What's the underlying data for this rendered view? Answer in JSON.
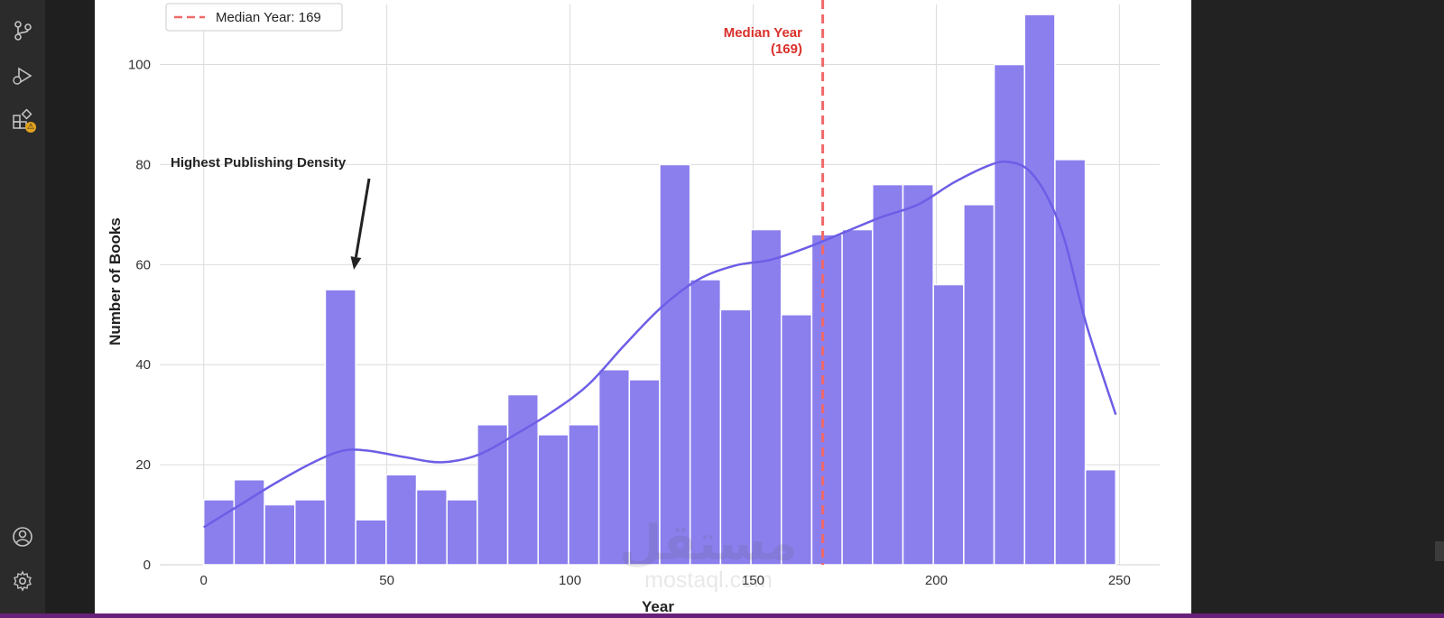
{
  "activity_bar": {
    "icons": [
      "source-control-icon",
      "run-debug-icon",
      "extensions-icon",
      "account-icon",
      "settings-gear-icon"
    ],
    "warning_badge": "⚠"
  },
  "colors": {
    "bar_fill": "#8b7fed",
    "bar_stroke": "#ffffff",
    "kde_line": "#6d5ee6",
    "median_line": "#f06969",
    "median_text": "#d9302b",
    "grid": "#dcdcdc",
    "annotation": "#222222"
  },
  "chart_data": {
    "type": "bar",
    "subtype": "histogram-with-kde",
    "title": "",
    "xlabel": "Year",
    "ylabel": "Number of Books",
    "xlim": [
      -12,
      261
    ],
    "ylim": [
      0,
      112
    ],
    "xticks": [
      0,
      50,
      100,
      150,
      200,
      250
    ],
    "yticks": [
      0,
      20,
      40,
      60,
      80,
      100
    ],
    "grid": true,
    "legend": {
      "position": "top-left",
      "entries": [
        "Median Year: 169"
      ]
    },
    "bins": {
      "start": 0,
      "width": 8.3,
      "counts": [
        13,
        17,
        12,
        13,
        55,
        9,
        18,
        15,
        13,
        28,
        34,
        26,
        28,
        39,
        37,
        80,
        57,
        51,
        67,
        50,
        66,
        67,
        76,
        76,
        56,
        72,
        100,
        110,
        81,
        19
      ]
    },
    "kde": {
      "x": [
        0,
        10,
        20,
        30,
        38,
        45,
        55,
        65,
        75,
        85,
        95,
        105,
        115,
        125,
        135,
        145,
        155,
        165,
        175,
        185,
        195,
        205,
        215,
        220,
        225,
        230,
        235,
        241,
        249
      ],
      "y": [
        7.5,
        12,
        16.5,
        20.5,
        22.8,
        22.8,
        21.5,
        20.5,
        22,
        26,
        30.5,
        36,
        44,
        51.5,
        57,
        59.8,
        61,
        63.5,
        66.5,
        69.5,
        72,
        76.5,
        80,
        80.5,
        79,
        74,
        65,
        48,
        30
      ]
    },
    "median": {
      "value": 169,
      "label": "Median Year: 169"
    },
    "annotations": [
      {
        "text": "Highest Publishing Density",
        "target_x": 41,
        "target_y": 59
      },
      {
        "text": "Median Year",
        "subtext": "(169)"
      }
    ]
  },
  "watermark": {
    "arabic": "مستقل",
    "latin": "mostaql.com"
  }
}
